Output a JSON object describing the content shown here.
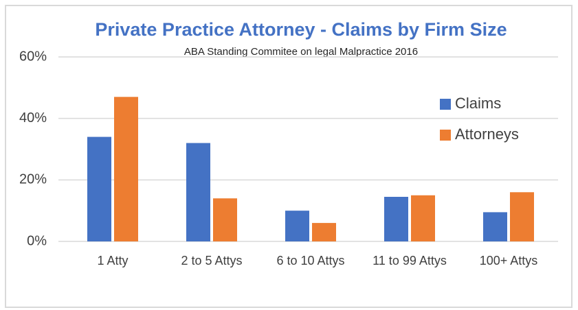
{
  "chart_data": {
    "type": "bar",
    "title": "Private Practice Attorney - Claims by Firm Size",
    "subtitle": "ABA Standing Commitee on legal Malpractice 2016",
    "categories": [
      "1 Atty",
      "2 to 5 Attys",
      "6 to 10 Attys",
      "11 to 99 Attys",
      "100+ Attys"
    ],
    "series": [
      {
        "name": "Claims",
        "color": "#4472c4",
        "values": [
          34,
          32,
          10,
          14.5,
          9.5
        ]
      },
      {
        "name": "Attorneys",
        "color": "#ed7d31",
        "values": [
          47,
          14,
          6,
          15,
          16
        ]
      }
    ],
    "ylim": [
      0,
      60
    ],
    "yticks": [
      {
        "value": 0,
        "label": "0%"
      },
      {
        "value": 20,
        "label": "20%"
      },
      {
        "value": 40,
        "label": "40%"
      },
      {
        "value": 60,
        "label": "60%"
      }
    ],
    "grid": true,
    "legend": "top-right"
  }
}
